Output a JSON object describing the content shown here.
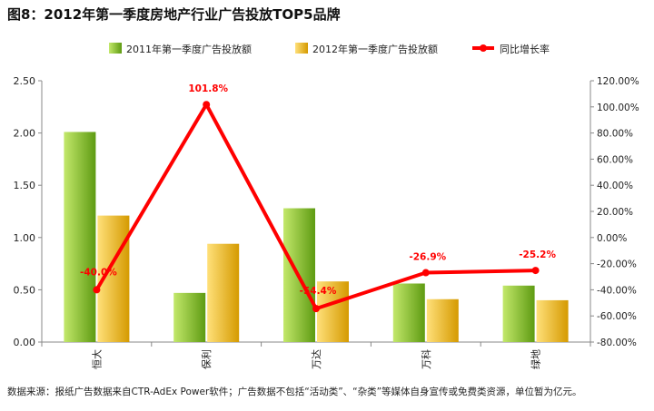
{
  "title": "图8：2012年第一季度房地产行业广告投放TOP5品牌",
  "source_note": "数据来源：报纸广告数据来自CTR-AdEx Power软件；广告数据不包括“活动类”、“杂类”等媒体自身宣传或免费类资源，单位暂为亿元。",
  "chart_data": {
    "type": "bar",
    "categories": [
      "恒大",
      "保利",
      "万达",
      "万科",
      "绿地"
    ],
    "series": [
      {
        "name": "2011年第一季度广告投放额",
        "type": "bar",
        "axis": "left",
        "values": [
          2.01,
          0.47,
          1.28,
          0.56,
          0.54
        ]
      },
      {
        "name": "2012年第一季度广告投放额",
        "type": "bar",
        "axis": "left",
        "values": [
          1.21,
          0.94,
          0.58,
          0.41,
          0.4
        ]
      },
      {
        "name": "同比增长率",
        "type": "line",
        "axis": "right",
        "values": [
          -40.0,
          101.8,
          -54.4,
          -26.9,
          -25.2
        ],
        "data_labels": [
          "-40.0%",
          "101.8%",
          "-54.4%",
          "-26.9%",
          "-25.2%"
        ]
      }
    ],
    "y_left": {
      "min": 0,
      "max": 2.5,
      "step": 0.5,
      "tick_labels": [
        "0.00",
        "0.50",
        "1.00",
        "1.50",
        "2.00",
        "2.50"
      ]
    },
    "y_right": {
      "min": -80,
      "max": 120,
      "step": 20,
      "tick_labels": [
        "-80.00%",
        "-60.00%",
        "-40.00%",
        "-20.00%",
        "0.00%",
        "20.00%",
        "40.00%",
        "60.00%",
        "80.00%",
        "100.00%",
        "120.00%"
      ]
    },
    "legend_position": "top",
    "grid": false,
    "colors": {
      "bar2011_light": "#c3e86b",
      "bar2011_dark": "#5e9b12",
      "bar2012_light": "#ffe07a",
      "bar2012_dark": "#d59a00",
      "line": "#ff0000",
      "label": "#ff0000",
      "axis": "#888888"
    }
  }
}
